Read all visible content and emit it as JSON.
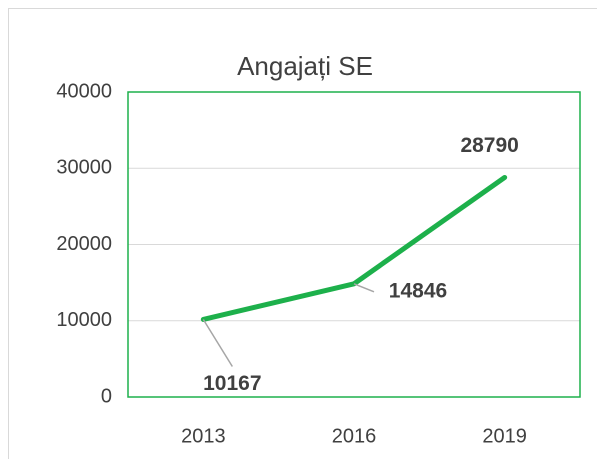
{
  "chart_data": {
    "type": "line",
    "title": "Angajați SE",
    "categories": [
      "2013",
      "2016",
      "2019"
    ],
    "series": [
      {
        "name": "Angajați SE",
        "color": "#1db04b",
        "values": [
          10167,
          14846,
          28790
        ]
      }
    ],
    "ylim": [
      0,
      40000
    ],
    "yticks": [
      0,
      10000,
      20000,
      30000,
      40000
    ],
    "grid": true,
    "plot_border_color": "#1db04b"
  }
}
